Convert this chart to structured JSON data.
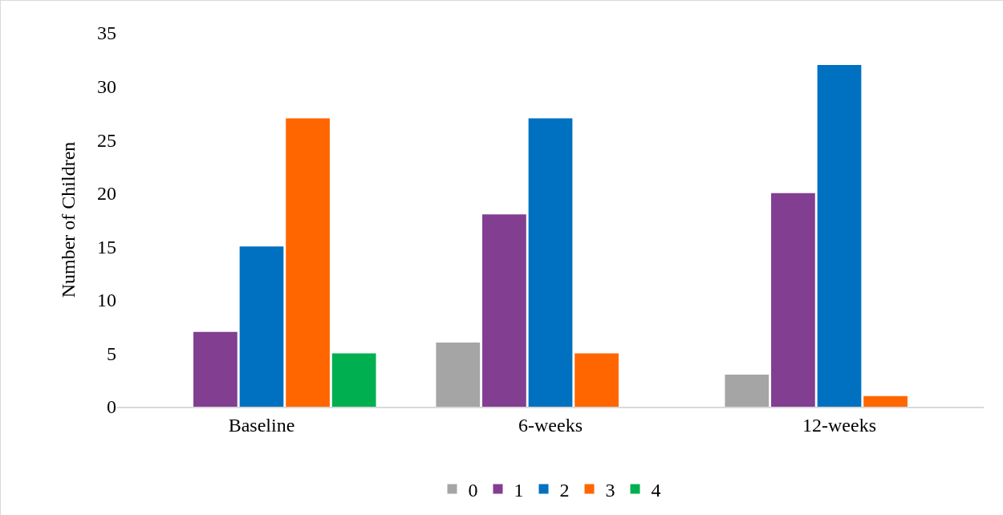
{
  "chart_data": {
    "type": "bar",
    "ylabel": "Number of Children",
    "categories": [
      "Baseline",
      "6-weeks",
      "12-weeks"
    ],
    "series": [
      {
        "name": "0",
        "color": "#a5a5a5",
        "values": [
          0,
          6,
          3
        ]
      },
      {
        "name": "1",
        "color": "#823e91",
        "values": [
          7,
          18,
          20
        ]
      },
      {
        "name": "2",
        "color": "#0070c0",
        "values": [
          15,
          27,
          32
        ]
      },
      {
        "name": "3",
        "color": "#ff6600",
        "values": [
          27,
          5,
          1
        ]
      },
      {
        "name": "4",
        "color": "#00b050",
        "values": [
          5,
          0,
          0
        ]
      }
    ],
    "ylim": [
      0,
      35
    ],
    "yticks": [
      0,
      5,
      10,
      15,
      20,
      25,
      30,
      35
    ],
    "grid": false,
    "legend": "bottom"
  }
}
